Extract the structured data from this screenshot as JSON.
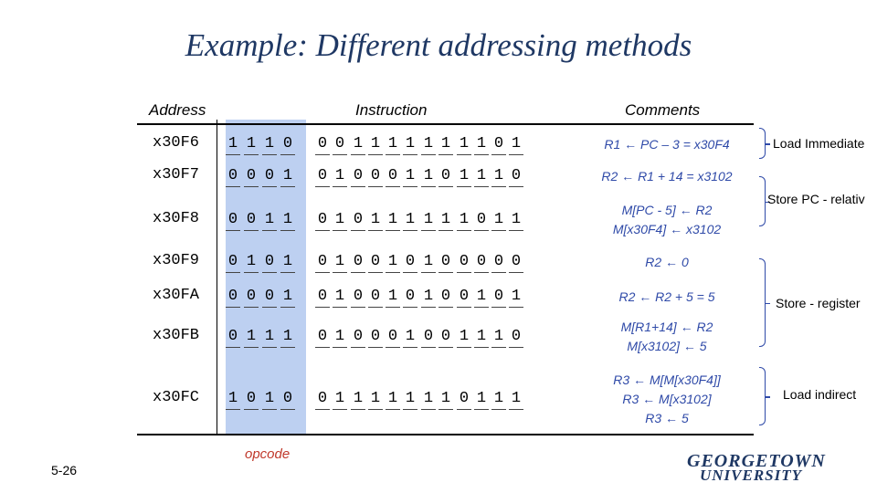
{
  "title": "Example: Different addressing methods",
  "headers": {
    "address": "Address",
    "instruction": "Instruction",
    "comments": "Comments"
  },
  "rows": [
    {
      "address": "x30F6",
      "bits": [
        "1",
        "1",
        "1",
        "0",
        "0",
        "0",
        "1",
        "1",
        "1",
        "1",
        "1",
        "1",
        "1",
        "1",
        "0",
        "1"
      ],
      "comment": [
        "R1 ← PC – 3 = x30F4"
      ]
    },
    {
      "address": "x30F7",
      "bits": [
        "0",
        "0",
        "0",
        "1",
        "0",
        "1",
        "0",
        "0",
        "0",
        "1",
        "1",
        "0",
        "1",
        "1",
        "1",
        "0"
      ],
      "comment": [
        "R2 ← R1 + 14 = x3102"
      ]
    },
    {
      "address": "x30F8",
      "bits": [
        "0",
        "0",
        "1",
        "1",
        "0",
        "1",
        "0",
        "1",
        "1",
        "1",
        "1",
        "1",
        "1",
        "0",
        "1",
        "1"
      ],
      "comment": [
        "M[PC - 5] ← R2",
        "M[x30F4] ← x3102"
      ]
    },
    {
      "address": "x30F9",
      "bits": [
        "0",
        "1",
        "0",
        "1",
        "0",
        "1",
        "0",
        "0",
        "1",
        "0",
        "1",
        "0",
        "0",
        "0",
        "0",
        "0"
      ],
      "comment": [
        "R2 ← 0"
      ]
    },
    {
      "address": "x30FA",
      "bits": [
        "0",
        "0",
        "0",
        "1",
        "0",
        "1",
        "0",
        "0",
        "1",
        "0",
        "1",
        "0",
        "0",
        "1",
        "0",
        "1"
      ],
      "comment": [
        "R2 ← R2 + 5 = 5"
      ]
    },
    {
      "address": "x30FB",
      "bits": [
        "0",
        "1",
        "1",
        "1",
        "0",
        "1",
        "0",
        "0",
        "0",
        "1",
        "0",
        "0",
        "1",
        "1",
        "1",
        "0"
      ],
      "comment": [
        "M[R1+14] ← R2",
        "M[x3102] ← 5"
      ]
    },
    {
      "address": "x30FC",
      "bits": [
        "1",
        "0",
        "1",
        "0",
        "0",
        "1",
        "1",
        "1",
        "1",
        "1",
        "1",
        "1",
        "0",
        "1",
        "1",
        "1"
      ],
      "comment": [
        "R3 ← M[M[x30F4]]",
        "R3 ← M[x3102]",
        "R3 ← 5"
      ]
    }
  ],
  "notes": {
    "load_immediate": "Load Immediate",
    "store_pc_relative": "Store PC - relativ",
    "store_register": "Store - register",
    "load_indirect": "Load indirect"
  },
  "opcode_label": "opcode",
  "page_number": "5-26",
  "logo": {
    "line1": "GEORGETOWN",
    "line2": "UNIVERSITY"
  },
  "colors": {
    "title": "#1f3864",
    "comments": "#2f4aa8",
    "opcode_highlight": "#bdd0f1",
    "opcode_label": "#c0392b"
  }
}
